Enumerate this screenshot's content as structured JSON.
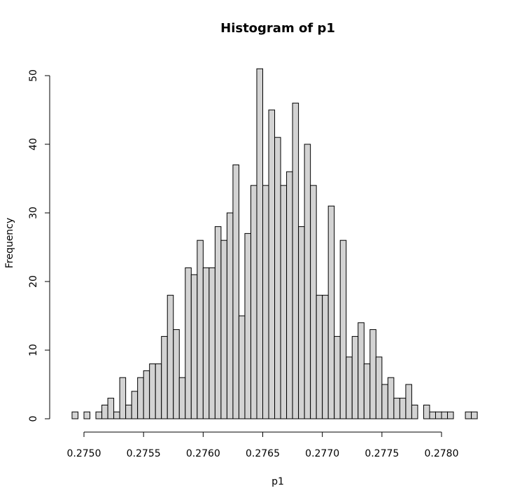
{
  "chart_data": {
    "type": "bar",
    "title": "Histogram of p1",
    "xlabel": "p1",
    "ylabel": "Frequency",
    "bin_start": 0.2749,
    "bin_width": 5e-05,
    "counts": [
      1,
      0,
      1,
      0,
      1,
      2,
      3,
      1,
      6,
      2,
      4,
      6,
      7,
      8,
      8,
      12,
      18,
      13,
      6,
      22,
      21,
      26,
      22,
      22,
      28,
      26,
      30,
      37,
      15,
      27,
      34,
      51,
      34,
      45,
      41,
      34,
      36,
      46,
      28,
      40,
      34,
      18,
      18,
      31,
      12,
      26,
      9,
      12,
      14,
      8,
      13,
      9,
      5,
      6,
      3,
      3,
      5,
      2,
      0,
      2,
      1,
      1,
      1,
      1,
      0,
      0,
      1,
      1
    ],
    "xlim": [
      0.275,
      0.278
    ],
    "ylim": [
      0,
      50
    ],
    "xticks": [
      "0.2750",
      "0.2755",
      "0.2760",
      "0.2765",
      "0.2770",
      "0.2775",
      "0.2780"
    ],
    "yticks": [
      "0",
      "10",
      "20",
      "30",
      "40",
      "50"
    ]
  }
}
